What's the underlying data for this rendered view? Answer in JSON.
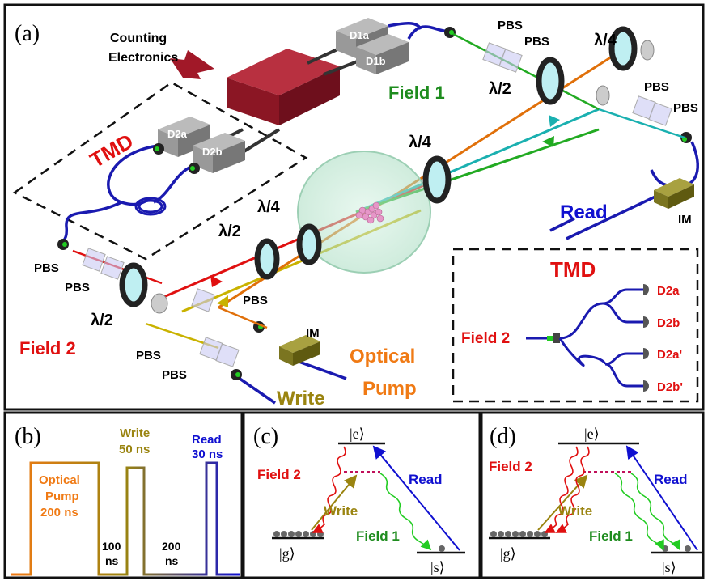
{
  "panel_a": {
    "tag": "(a)",
    "counting": [
      "Counting",
      "Electronics"
    ],
    "d1a": "D1a",
    "d1b": "D1b",
    "d2a": "D2a",
    "d2b": "D2b",
    "pbs": "PBS",
    "field1": "Field 1",
    "field2": "Field 2",
    "tmd": "TMD",
    "lambda2": "λ/2",
    "lambda4": "λ/4",
    "read": "Read",
    "write": "Write",
    "im": "IM",
    "optical_pump": [
      "Optical",
      "Pump"
    ],
    "inset": {
      "title": "TMD",
      "field2": "Field 2",
      "d2a": "D2a",
      "d2b": "D2b",
      "d2a_p": "D2a'",
      "d2b_p": "D2b'"
    }
  },
  "panel_b": {
    "tag": "(b)",
    "optical_pump": [
      "Optical",
      "Pump",
      "200 ns"
    ],
    "write": [
      "Write",
      "50 ns"
    ],
    "read": [
      "Read",
      "30 ns"
    ],
    "gap1": [
      "100",
      "ns"
    ],
    "gap2": [
      "200",
      "ns"
    ]
  },
  "panel_c": {
    "tag": "(c)",
    "e": "|e⟩",
    "g": "|g⟩",
    "s": "|s⟩",
    "field2": "Field 2",
    "read": "Read",
    "write": "Write",
    "field1": "Field 1"
  },
  "panel_d": {
    "tag": "(d)",
    "e": "|e⟩",
    "g": "|g⟩",
    "s": "|s⟩",
    "field2": "Field 2",
    "read": "Read",
    "write": "Write",
    "field1": "Field 1"
  },
  "colors": {
    "field1": "#1e8c1e",
    "field2": "#e01010",
    "read": "#1010d0",
    "write": "#9a8410",
    "pump": "#f07a14",
    "tmd": "#e01010",
    "box": "#8b1624"
  }
}
